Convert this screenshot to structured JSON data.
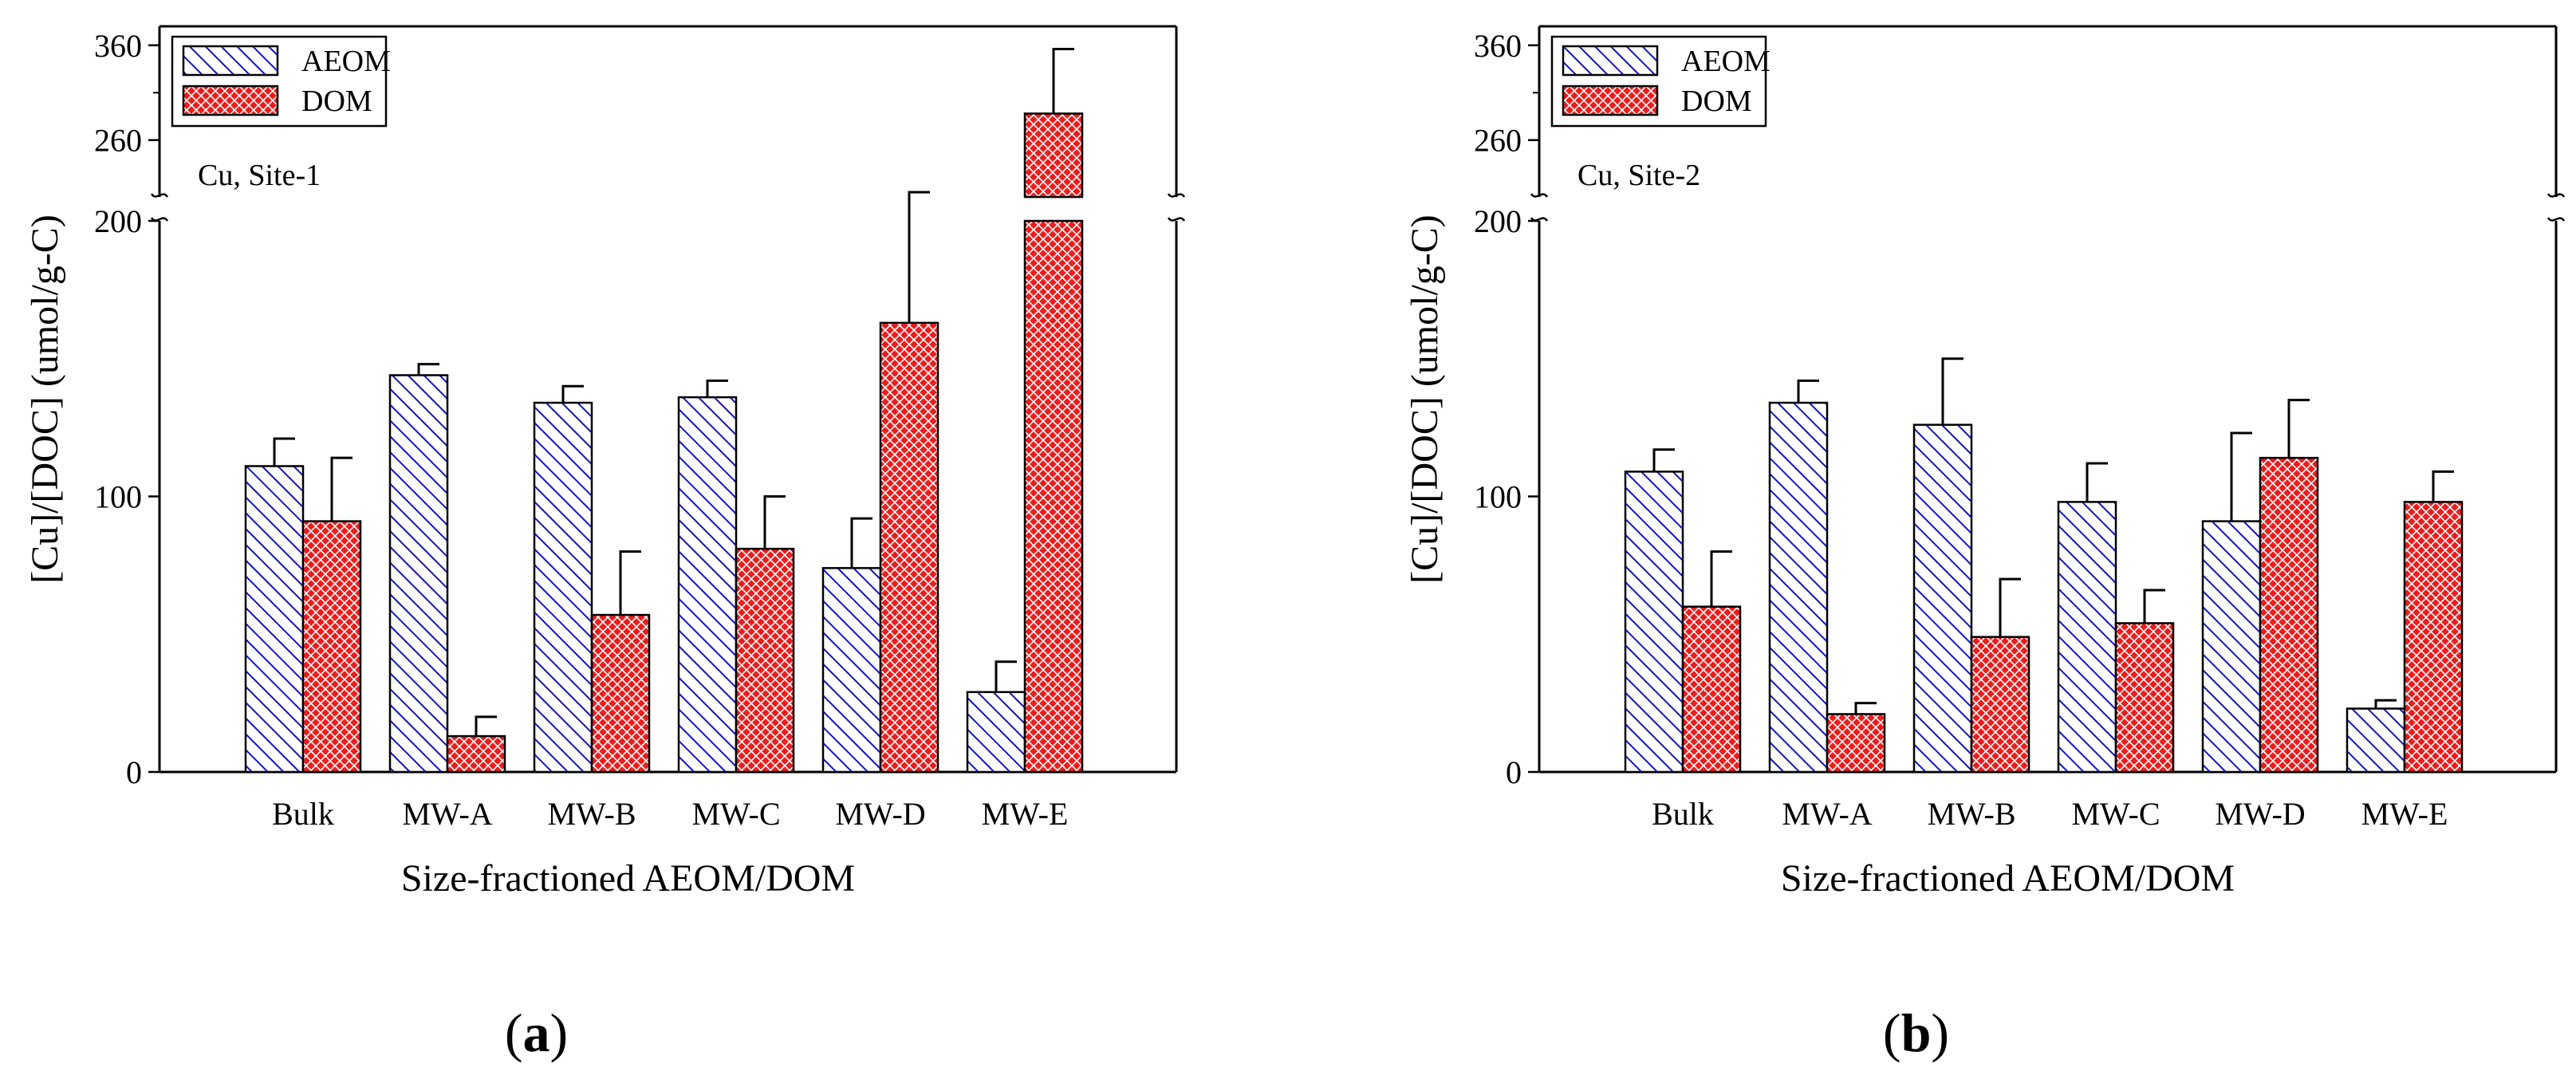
{
  "chart_data": [
    {
      "type": "bar",
      "panel_label": "a",
      "annotation": "Cu, Site-1",
      "xlabel": "Size-fractioned AEOM/DOM",
      "ylabel": "[Cu]/[DOC] (umol/g-C)",
      "categories": [
        "Bulk",
        "MW-A",
        "MW-B",
        "MW-C",
        "MW-D",
        "MW-E"
      ],
      "y_axis_break": {
        "lower_range": [
          0,
          200
        ],
        "upper_range": [
          200,
          380
        ]
      },
      "yticks": [
        0,
        100,
        200,
        260,
        360
      ],
      "legend_position": "top-left",
      "series": [
        {
          "name": "AEOM",
          "color": "#1414c8",
          "pattern": "diagonal-hatch",
          "values": [
            111,
            144,
            134,
            136,
            74,
            29
          ],
          "errors": [
            10,
            4,
            6,
            6,
            18,
            11
          ]
        },
        {
          "name": "DOM",
          "color": "#ee1c1c",
          "pattern": "crosshatch",
          "values": [
            91,
            13,
            57,
            81,
            163,
            288
          ],
          "errors": [
            23,
            7,
            23,
            19,
            42,
            68
          ]
        }
      ]
    },
    {
      "type": "bar",
      "panel_label": "b",
      "annotation": "Cu, Site-2",
      "xlabel": "Size-fractioned AEOM/DOM",
      "ylabel": "[Cu]/[DOC] (umol/g-C)",
      "categories": [
        "Bulk",
        "MW-A",
        "MW-B",
        "MW-C",
        "MW-D",
        "MW-E"
      ],
      "y_axis_break": {
        "lower_range": [
          0,
          200
        ],
        "upper_range": [
          200,
          380
        ]
      },
      "yticks": [
        0,
        100,
        200,
        260,
        360
      ],
      "legend_position": "top-left",
      "series": [
        {
          "name": "AEOM",
          "color": "#1414c8",
          "pattern": "diagonal-hatch",
          "values": [
            109,
            134,
            126,
            98,
            91,
            23
          ],
          "errors": [
            8,
            8,
            24,
            14,
            32,
            3
          ]
        },
        {
          "name": "DOM",
          "color": "#ee1c1c",
          "pattern": "crosshatch",
          "values": [
            60,
            21,
            49,
            54,
            114,
            98
          ],
          "errors": [
            20,
            4,
            21,
            12,
            21,
            11
          ]
        }
      ]
    }
  ]
}
